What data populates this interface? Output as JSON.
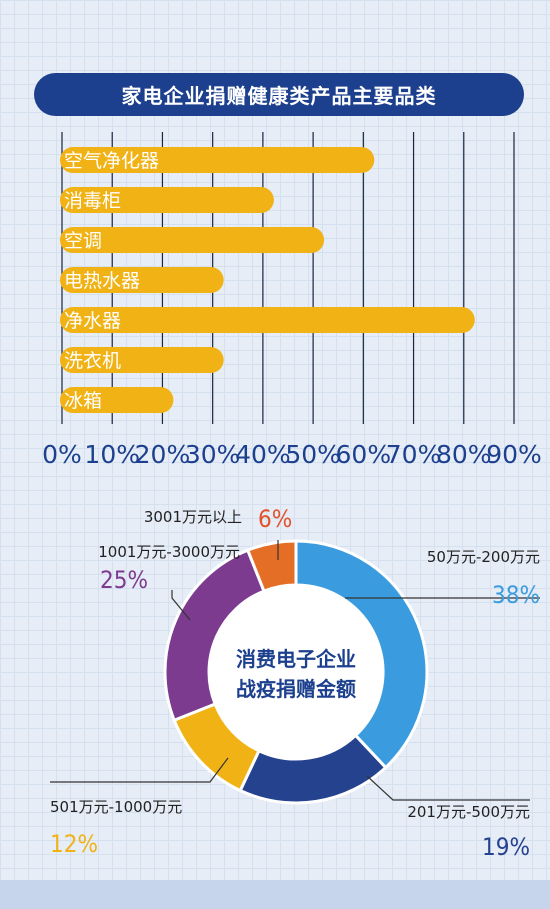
{
  "colors": {
    "navy": "#1c3f8e",
    "bar": "#f0b215",
    "grid_line": "#1a2340",
    "seg_blue": "#3a9cdf",
    "seg_navy": "#25428f",
    "seg_yellow": "#f0b215",
    "seg_purple": "#7c3b8f",
    "seg_orange": "#e56e26",
    "pct_orange": "#e2522a"
  },
  "chart_data": [
    {
      "type": "bar",
      "orientation": "horizontal",
      "title": "家电企业捐赠健康类产品主要品类",
      "categories": [
        "空气净化器",
        "消毒柜",
        "空调",
        "电热水器",
        "净水器",
        "洗衣机",
        "冰箱"
      ],
      "values": [
        60,
        40,
        50,
        30,
        80,
        30,
        20
      ],
      "xlim": [
        0,
        90
      ],
      "ticks": [
        "0%",
        "10%",
        "20%",
        "30%",
        "40%",
        "50%",
        "60%",
        "70%",
        "80%",
        "90%"
      ],
      "grid": true
    },
    {
      "type": "pie",
      "variant": "donut",
      "center_label": [
        "消费电子企业",
        "战疫捐赠金额"
      ],
      "slices": [
        {
          "label": "50万元-200万元",
          "value": 38,
          "pct": "38%",
          "color": "#3a9cdf",
          "pct_color": "#3a9cdf"
        },
        {
          "label": "201万元-500万元",
          "value": 19,
          "pct": "19%",
          "color": "#25428f",
          "pct_color": "#25428f"
        },
        {
          "label": "501万元-1000万元",
          "value": 12,
          "pct": "12%",
          "color": "#f0b215",
          "pct_color": "#f0b215"
        },
        {
          "label": "1001万元-3000万元",
          "value": 25,
          "pct": "25%",
          "color": "#7c3b8f",
          "pct_color": "#7c3b8f"
        },
        {
          "label": "3001万元以上",
          "value": 6,
          "pct": "6%",
          "color": "#e56e26",
          "pct_color": "#e2522a"
        }
      ]
    }
  ]
}
